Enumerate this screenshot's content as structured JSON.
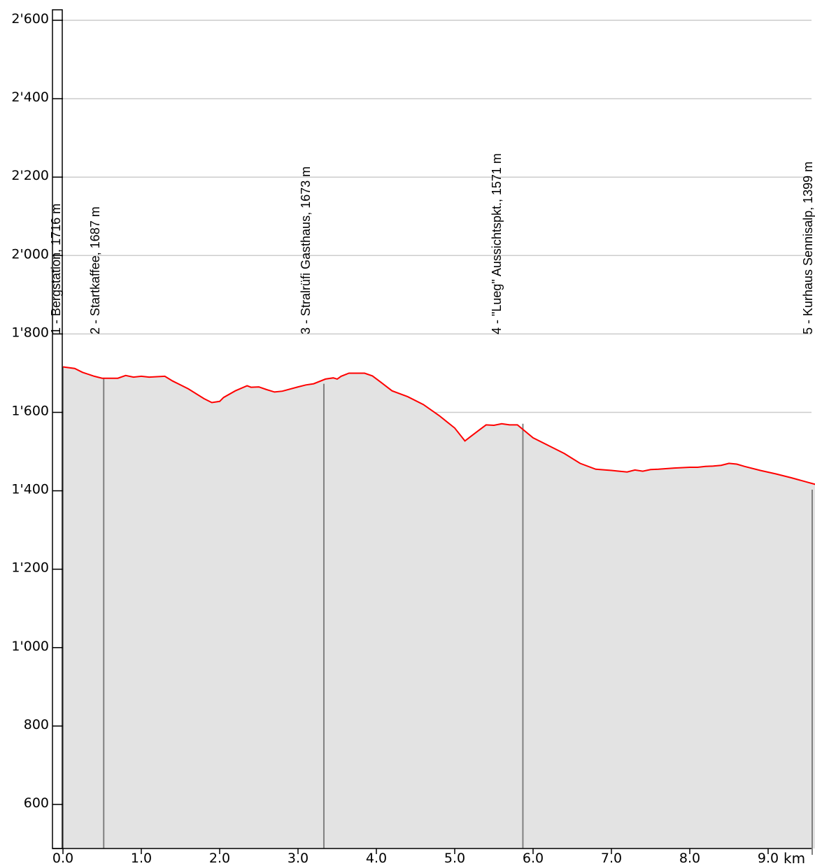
{
  "chart_data": {
    "type": "area",
    "title": "",
    "xlabel": "km",
    "ylabel": "",
    "xlim": [
      0,
      10.0
    ],
    "ylim": [
      500,
      2600
    ],
    "grid": true,
    "x_ticks": [
      "0.0",
      "1.0",
      "2.0",
      "3.0",
      "4.0",
      "5.0",
      "6.0",
      "7.0",
      "8.0",
      "9.0"
    ],
    "y_ticks": [
      "600",
      "800",
      "1'000",
      "1'200",
      "1'400",
      "1'600",
      "1'800",
      "2'000",
      "2'200",
      "2'400",
      "2'600"
    ],
    "colors": {
      "line": "#ff0000",
      "fill": "#e3e3e3",
      "grid": "#cccccc",
      "marker": "#808080"
    },
    "series": [
      {
        "x": [
          0.0,
          0.15,
          0.25,
          0.4,
          0.5,
          0.7,
          0.8,
          0.9,
          1.0,
          1.1,
          1.3,
          1.4,
          1.6,
          1.8,
          1.9,
          2.0,
          2.05,
          2.2,
          2.35,
          2.4,
          2.5,
          2.6,
          2.7,
          2.8,
          3.0,
          3.1,
          3.2,
          3.35,
          3.45,
          3.5,
          3.55,
          3.65,
          3.75,
          3.85,
          3.95,
          4.05,
          4.2,
          4.4,
          4.6,
          4.8,
          5.0,
          5.13,
          5.2,
          5.3,
          5.4,
          5.5,
          5.6,
          5.7,
          5.8,
          6.0,
          6.2,
          6.4,
          6.6,
          6.8,
          7.0,
          7.2,
          7.3,
          7.4,
          7.5,
          7.6,
          7.8,
          8.0,
          8.1,
          8.2,
          8.3,
          8.4,
          8.5,
          8.6,
          8.7,
          8.9,
          9.1,
          9.3,
          9.5,
          9.7,
          9.85,
          10.0
        ],
        "y": [
          1716,
          1712,
          1702,
          1692,
          1687,
          1687,
          1694,
          1690,
          1692,
          1690,
          1692,
          1680,
          1660,
          1635,
          1625,
          1628,
          1638,
          1655,
          1668,
          1664,
          1665,
          1658,
          1652,
          1654,
          1665,
          1670,
          1673,
          1685,
          1688,
          1685,
          1692,
          1700,
          1700,
          1700,
          1693,
          1678,
          1655,
          1640,
          1620,
          1592,
          1560,
          1527,
          1538,
          1553,
          1568,
          1567,
          1571,
          1568,
          1568,
          1535,
          1515,
          1495,
          1470,
          1455,
          1452,
          1448,
          1453,
          1450,
          1454,
          1455,
          1458,
          1460,
          1460,
          1462,
          1463,
          1465,
          1470,
          1468,
          1462,
          1452,
          1443,
          1433,
          1422,
          1411,
          1405,
          1399
        ]
      }
    ],
    "waypoints": [
      {
        "x": 0.0,
        "elevation": 1716,
        "label": "1 - Bergstation, 1716 m"
      },
      {
        "x": 0.52,
        "elevation": 1687,
        "label": "2 - Startkaffee, 1687 m"
      },
      {
        "x": 3.33,
        "elevation": 1673,
        "label": "3 - Stralrüfi Gasthaus, 1673 m"
      },
      {
        "x": 5.87,
        "elevation": 1571,
        "label": "4 - \"Lueg\" Aussichtspkt., 1571 m"
      },
      {
        "x": 10.0,
        "elevation": 1399,
        "label": "5 - Kurhaus Sennisalp, 1399 m"
      }
    ]
  }
}
